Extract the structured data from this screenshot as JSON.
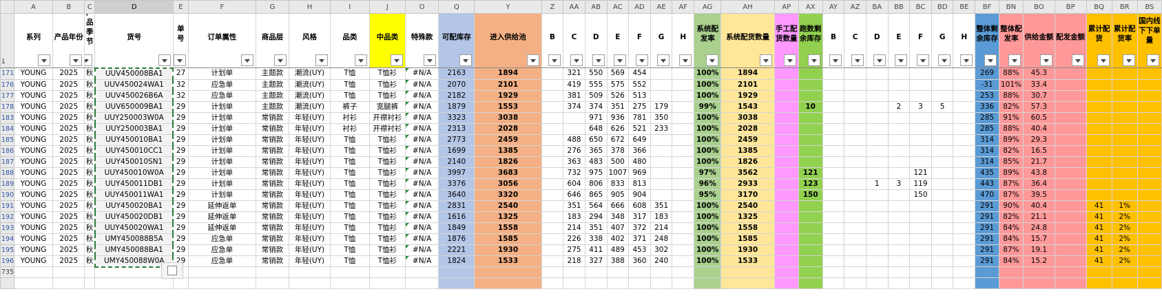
{
  "columns": [
    {
      "letter": "A",
      "header": "系列",
      "width": 52,
      "color": ""
    },
    {
      "letter": "B",
      "header": "产品年份",
      "width": 42,
      "color": ""
    },
    {
      "letter": "C",
      "header": "产品季节",
      "width": 14,
      "color": ""
    },
    {
      "letter": "D",
      "header": "货号",
      "width": 104,
      "color": ""
    },
    {
      "letter": "E",
      "header": "单号",
      "width": 20,
      "color": ""
    },
    {
      "letter": "F",
      "header": "订单属性",
      "width": 90,
      "color": ""
    },
    {
      "letter": "G",
      "header": "商品层",
      "width": 44,
      "color": ""
    },
    {
      "letter": "H",
      "header": "风格",
      "width": 55,
      "color": ""
    },
    {
      "letter": "I",
      "header": "品类",
      "width": 52,
      "color": ""
    },
    {
      "letter": "J",
      "header": "中品类",
      "width": 48,
      "color": "#ffff00"
    },
    {
      "letter": "O",
      "header": "特殊款",
      "width": 44,
      "color": ""
    },
    {
      "letter": "Q",
      "header": "可配库存",
      "width": 48,
      "color": "#b4c6e7"
    },
    {
      "letter": "Y",
      "header": "进入供给池",
      "width": 89,
      "color": "#f4b084"
    },
    {
      "letter": "Z",
      "header": "B",
      "width": 29,
      "color": ""
    },
    {
      "letter": "AA",
      "header": "C",
      "width": 29,
      "color": ""
    },
    {
      "letter": "AB",
      "header": "D",
      "width": 29,
      "color": ""
    },
    {
      "letter": "AC",
      "header": "E",
      "width": 29,
      "color": ""
    },
    {
      "letter": "AD",
      "header": "F",
      "width": 29,
      "color": ""
    },
    {
      "letter": "AE",
      "header": "G",
      "width": 29,
      "color": ""
    },
    {
      "letter": "AF",
      "header": "H",
      "width": 29,
      "color": ""
    },
    {
      "letter": "AG",
      "header": "系统配发率",
      "width": 36,
      "color": "#a9d08e"
    },
    {
      "letter": "AH",
      "header": "系统配货数量",
      "width": 71,
      "color": "#ffe699"
    },
    {
      "letter": "AP",
      "header": "手工配货数量",
      "width": 32,
      "color": "#ff99ff"
    },
    {
      "letter": "AX",
      "header": "跑数剩余库存",
      "width": 32,
      "color": "#92d050"
    },
    {
      "letter": "AY",
      "header": "B",
      "width": 29,
      "color": ""
    },
    {
      "letter": "AZ",
      "header": "C",
      "width": 29,
      "color": ""
    },
    {
      "letter": "BA",
      "header": "D",
      "width": 29,
      "color": ""
    },
    {
      "letter": "BB",
      "header": "E",
      "width": 29,
      "color": ""
    },
    {
      "letter": "BC",
      "header": "F",
      "width": 29,
      "color": ""
    },
    {
      "letter": "BD",
      "header": "G",
      "width": 29,
      "color": ""
    },
    {
      "letter": "BE",
      "header": "H",
      "width": 29,
      "color": ""
    },
    {
      "letter": "BF",
      "header": "整体剩余库存",
      "width": 32,
      "color": "#5b9bd5"
    },
    {
      "letter": "BN",
      "header": "整体配发率",
      "width": 32,
      "color": "#ff9999"
    },
    {
      "letter": "BO",
      "header": "供给金额",
      "width": 42,
      "color": "#ff9999"
    },
    {
      "letter": "BP",
      "header": "配发金额",
      "width": 42,
      "color": "#ff9999"
    },
    {
      "letter": "BQ",
      "header": "累计配货",
      "width": 34,
      "color": "#ffc000"
    },
    {
      "letter": "BR",
      "header": "累计配货率",
      "width": 34,
      "color": "#ffc000"
    },
    {
      "letter": "BS",
      "header": "国内线下下单量",
      "width": 32,
      "color": "#ffc000"
    }
  ],
  "header_row_number": "1",
  "rows": [
    {
      "n": "171",
      "c": [
        "YOUNG",
        "2025",
        "秋",
        "UUV450008BA1",
        "27",
        "计划单",
        "主题款",
        "潮流(UY)",
        "T恤",
        "T恤衫",
        "#N/A",
        "2163",
        "1894",
        "",
        "321",
        "550",
        "569",
        "454",
        "",
        "",
        "100%",
        "1894",
        "",
        "",
        "",
        "",
        "",
        "",
        "",
        "",
        "",
        "269",
        "88%",
        "45.3",
        "",
        "",
        "",
        ""
      ]
    },
    {
      "n": "176",
      "c": [
        "YOUNG",
        "2025",
        "秋",
        "UUV450024WA1",
        "32",
        "应急单",
        "主题款",
        "潮流(UY)",
        "T恤",
        "T恤衫",
        "#N/A",
        "2070",
        "2101",
        "",
        "419",
        "555",
        "575",
        "552",
        "",
        "",
        "100%",
        "2101",
        "",
        "",
        "",
        "",
        "",
        "",
        "",
        "",
        "",
        "-31",
        "101%",
        "33.4",
        "",
        "",
        "",
        ""
      ]
    },
    {
      "n": "177",
      "c": [
        "YOUNG",
        "2025",
        "秋",
        "UUV450026B6A",
        "32",
        "应急单",
        "主题款",
        "潮流(UY)",
        "T恤",
        "T恤衫",
        "#N/A",
        "2182",
        "1929",
        "",
        "381",
        "509",
        "526",
        "513",
        "",
        "",
        "100%",
        "1929",
        "",
        "",
        "",
        "",
        "",
        "",
        "",
        "",
        "",
        "253",
        "88%",
        "30.7",
        "",
        "",
        "",
        ""
      ]
    },
    {
      "n": "178",
      "c": [
        "YOUNG",
        "2025",
        "秋",
        "UUV650009BA1",
        "29",
        "计划单",
        "主题款",
        "潮流(UY)",
        "裤子",
        "宽腿裤",
        "#N/A",
        "1879",
        "1553",
        "",
        "374",
        "374",
        "351",
        "275",
        "179",
        "",
        "99%",
        "1543",
        "",
        "10",
        "",
        "",
        "",
        "2",
        "3",
        "5",
        "",
        "336",
        "82%",
        "57.3",
        "",
        "",
        "",
        ""
      ]
    },
    {
      "n": "183",
      "c": [
        "YOUNG",
        "2025",
        "秋",
        "UUY250003W0A",
        "29",
        "计划单",
        "常销款",
        "年轻(UY)",
        "衬衫",
        "开襟衬衫",
        "#N/A",
        "3323",
        "3038",
        "",
        "",
        "971",
        "936",
        "781",
        "350",
        "",
        "100%",
        "3038",
        "",
        "",
        "",
        "",
        "",
        "",
        "",
        "",
        "",
        "285",
        "91%",
        "60.5",
        "",
        "",
        "",
        ""
      ]
    },
    {
      "n": "184",
      "c": [
        "YOUNG",
        "2025",
        "秋",
        "UUY250003BA1",
        "29",
        "计划单",
        "常销款",
        "年轻(UY)",
        "衬衫",
        "开襟衬衫",
        "#N/A",
        "2313",
        "2028",
        "",
        "",
        "648",
        "626",
        "521",
        "233",
        "",
        "100%",
        "2028",
        "",
        "",
        "",
        "",
        "",
        "",
        "",
        "",
        "",
        "285",
        "88%",
        "40.4",
        "",
        "",
        "",
        ""
      ]
    },
    {
      "n": "185",
      "c": [
        "YOUNG",
        "2025",
        "秋",
        "UUY450010BA1",
        "29",
        "计划单",
        "常销款",
        "年轻(UY)",
        "T恤",
        "T恤衫",
        "#N/A",
        "2773",
        "2459",
        "",
        "488",
        "650",
        "672",
        "649",
        "",
        "",
        "100%",
        "2459",
        "",
        "",
        "",
        "",
        "",
        "",
        "",
        "",
        "",
        "314",
        "89%",
        "29.3",
        "",
        "",
        "",
        ""
      ]
    },
    {
      "n": "186",
      "c": [
        "YOUNG",
        "2025",
        "秋",
        "UUY450010CC1",
        "29",
        "计划单",
        "常销款",
        "年轻(UY)",
        "T恤",
        "T恤衫",
        "#N/A",
        "1699",
        "1385",
        "",
        "276",
        "365",
        "378",
        "366",
        "",
        "",
        "100%",
        "1385",
        "",
        "",
        "",
        "",
        "",
        "",
        "",
        "",
        "",
        "314",
        "82%",
        "16.5",
        "",
        "",
        "",
        ""
      ]
    },
    {
      "n": "187",
      "c": [
        "YOUNG",
        "2025",
        "秋",
        "UUY450010SN1",
        "29",
        "计划单",
        "常销款",
        "年轻(UY)",
        "T恤",
        "T恤衫",
        "#N/A",
        "2140",
        "1826",
        "",
        "363",
        "483",
        "500",
        "480",
        "",
        "",
        "100%",
        "1826",
        "",
        "",
        "",
        "",
        "",
        "",
        "",
        "",
        "",
        "314",
        "85%",
        "21.7",
        "",
        "",
        "",
        ""
      ]
    },
    {
      "n": "188",
      "c": [
        "YOUNG",
        "2025",
        "秋",
        "UUY450010W0A",
        "29",
        "计划单",
        "常销款",
        "年轻(UY)",
        "T恤",
        "T恤衫",
        "#N/A",
        "3997",
        "3683",
        "",
        "732",
        "975",
        "1007",
        "969",
        "",
        "",
        "97%",
        "3562",
        "",
        "121",
        "",
        "",
        "",
        "",
        "121",
        "",
        "",
        "435",
        "89%",
        "43.8",
        "",
        "",
        "",
        ""
      ]
    },
    {
      "n": "189",
      "c": [
        "YOUNG",
        "2025",
        "秋",
        "UUY450011DB1",
        "29",
        "计划单",
        "常销款",
        "年轻(UY)",
        "T恤",
        "T恤衫",
        "#N/A",
        "3376",
        "3056",
        "",
        "604",
        "806",
        "833",
        "813",
        "",
        "",
        "96%",
        "2933",
        "",
        "123",
        "",
        "",
        "1",
        "3",
        "119",
        "",
        "",
        "443",
        "87%",
        "36.4",
        "",
        "",
        "",
        ""
      ]
    },
    {
      "n": "190",
      "c": [
        "YOUNG",
        "2025",
        "秋",
        "UUY450011WA1",
        "29",
        "计划单",
        "常销款",
        "年轻(UY)",
        "T恤",
        "T恤衫",
        "#N/A",
        "3640",
        "3320",
        "",
        "646",
        "865",
        "905",
        "904",
        "",
        "",
        "95%",
        "3170",
        "",
        "150",
        "",
        "",
        "",
        "",
        "150",
        "",
        "",
        "470",
        "87%",
        "39.5",
        "",
        "",
        "",
        ""
      ]
    },
    {
      "n": "191",
      "c": [
        "YOUNG",
        "2025",
        "秋",
        "UUY450020BA1",
        "29",
        "延伸返单",
        "常销款",
        "年轻(UY)",
        "T恤",
        "T恤衫",
        "#N/A",
        "2831",
        "2540",
        "",
        "351",
        "564",
        "666",
        "608",
        "351",
        "",
        "100%",
        "2540",
        "",
        "",
        "",
        "",
        "",
        "",
        "",
        "",
        "",
        "291",
        "90%",
        "40.4",
        "",
        "41",
        "1%",
        ""
      ]
    },
    {
      "n": "192",
      "c": [
        "YOUNG",
        "2025",
        "秋",
        "UUY450020DB1",
        "29",
        "延伸返单",
        "常销款",
        "年轻(UY)",
        "T恤",
        "T恤衫",
        "#N/A",
        "1616",
        "1325",
        "",
        "183",
        "294",
        "348",
        "317",
        "183",
        "",
        "100%",
        "1325",
        "",
        "",
        "",
        "",
        "",
        "",
        "",
        "",
        "",
        "291",
        "82%",
        "21.1",
        "",
        "41",
        "2%",
        ""
      ]
    },
    {
      "n": "193",
      "c": [
        "YOUNG",
        "2025",
        "秋",
        "UUY450020WA1",
        "29",
        "延伸返单",
        "常销款",
        "年轻(UY)",
        "T恤",
        "T恤衫",
        "#N/A",
        "1849",
        "1558",
        "",
        "214",
        "351",
        "407",
        "372",
        "214",
        "",
        "100%",
        "1558",
        "",
        "",
        "",
        "",
        "",
        "",
        "",
        "",
        "",
        "291",
        "84%",
        "24.8",
        "",
        "41",
        "2%",
        ""
      ]
    },
    {
      "n": "194",
      "c": [
        "YOUNG",
        "2025",
        "秋",
        "UMY450088B5A",
        "29",
        "应急单",
        "常销款",
        "年轻(UY)",
        "T恤",
        "T恤衫",
        "#N/A",
        "1876",
        "1585",
        "",
        "226",
        "338",
        "402",
        "371",
        "248",
        "",
        "100%",
        "1585",
        "",
        "",
        "",
        "",
        "",
        "",
        "",
        "",
        "",
        "291",
        "84%",
        "15.7",
        "",
        "41",
        "2%",
        ""
      ]
    },
    {
      "n": "195",
      "c": [
        "YOUNG",
        "2025",
        "秋",
        "UMY450088BA1",
        "29",
        "应急单",
        "常销款",
        "年轻(UY)",
        "T恤",
        "T恤衫",
        "#N/A",
        "2221",
        "1930",
        "",
        "275",
        "411",
        "489",
        "453",
        "302",
        "",
        "100%",
        "1930",
        "",
        "",
        "",
        "",
        "",
        "",
        "",
        "",
        "",
        "291",
        "87%",
        "19.1",
        "",
        "41",
        "2%",
        ""
      ]
    },
    {
      "n": "196",
      "c": [
        "YOUNG",
        "2025",
        "秋",
        "UMY450088W0A",
        "29",
        "应急单",
        "常销款",
        "年轻(UY)",
        "T恤",
        "T恤衫",
        "#N/A",
        "1824",
        "1533",
        "",
        "218",
        "327",
        "388",
        "360",
        "240",
        "",
        "100%",
        "1533",
        "",
        "",
        "",
        "",
        "",
        "",
        "",
        "",
        "",
        "291",
        "84%",
        "15.2",
        "",
        "41",
        "2%",
        ""
      ]
    }
  ],
  "tail_rows": [
    "735",
    ""
  ]
}
